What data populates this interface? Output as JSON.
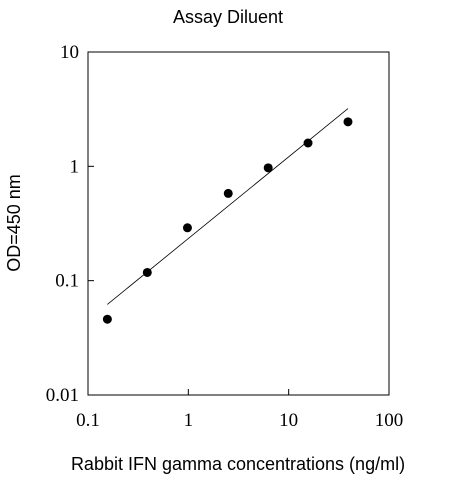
{
  "chart_data": {
    "type": "scatter",
    "title": "Assay Diluent",
    "xlabel": "Rabbit IFN gamma concentrations (ng/ml)",
    "ylabel": "OD=450 nm",
    "x_scale": "log",
    "y_scale": "log",
    "xlim": [
      0.1,
      100
    ],
    "ylim": [
      0.01,
      10
    ],
    "x_ticks": [
      0.1,
      1,
      10,
      100
    ],
    "x_tick_labels": [
      "0.1",
      "1",
      "10",
      "100"
    ],
    "y_ticks": [
      0.01,
      0.1,
      1,
      10
    ],
    "y_tick_labels": [
      "0.01",
      "0.1",
      "1",
      "10"
    ],
    "grid": false,
    "legend": "none",
    "series": [
      {
        "type": "scatter",
        "x": [
          0.156,
          0.39,
          0.98,
          2.5,
          6.25,
          15.6,
          39
        ],
        "y": [
          0.046,
          0.118,
          0.29,
          0.58,
          0.97,
          1.6,
          2.45
        ],
        "color": "#000000"
      },
      {
        "type": "line",
        "x": [
          0.156,
          39
        ],
        "y": [
          0.062,
          3.2
        ],
        "color": "#000000"
      }
    ]
  }
}
